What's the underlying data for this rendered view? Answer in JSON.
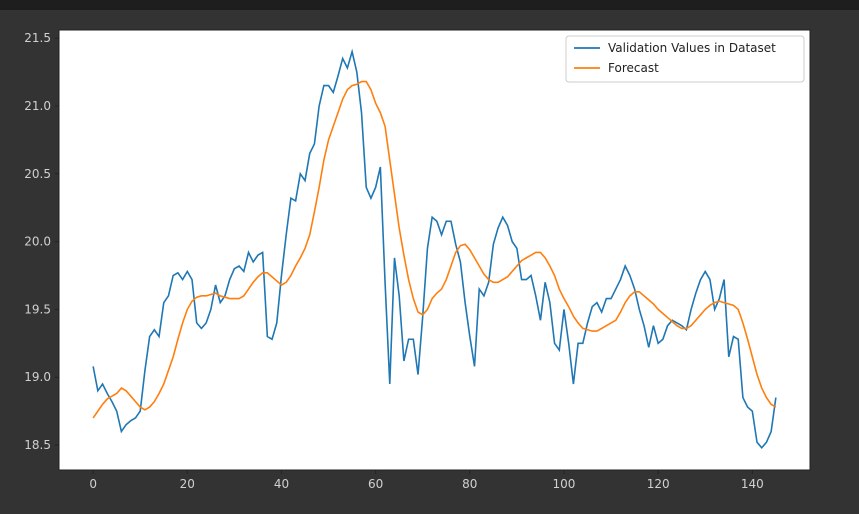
{
  "chart_data": {
    "type": "line",
    "x": [
      0,
      1,
      2,
      3,
      4,
      5,
      6,
      7,
      8,
      9,
      10,
      11,
      12,
      13,
      14,
      15,
      16,
      17,
      18,
      19,
      20,
      21,
      22,
      23,
      24,
      25,
      26,
      27,
      28,
      29,
      30,
      31,
      32,
      33,
      34,
      35,
      36,
      37,
      38,
      39,
      40,
      41,
      42,
      43,
      44,
      45,
      46,
      47,
      48,
      49,
      50,
      51,
      52,
      53,
      54,
      55,
      56,
      57,
      58,
      59,
      60,
      61,
      62,
      63,
      64,
      65,
      66,
      67,
      68,
      69,
      70,
      71,
      72,
      73,
      74,
      75,
      76,
      77,
      78,
      79,
      80,
      81,
      82,
      83,
      84,
      85,
      86,
      87,
      88,
      89,
      90,
      91,
      92,
      93,
      94,
      95,
      96,
      97,
      98,
      99,
      100,
      101,
      102,
      103,
      104,
      105,
      106,
      107,
      108,
      109,
      110,
      111,
      112,
      113,
      114,
      115,
      116,
      117,
      118,
      119,
      120,
      121,
      122,
      123,
      124,
      125,
      126,
      127,
      128,
      129,
      130,
      131,
      132,
      133,
      134,
      135,
      136,
      137,
      138,
      139,
      140,
      141,
      142,
      143,
      144,
      145
    ],
    "series": [
      {
        "name": "Validation Values in Dataset",
        "color": "#1f77b4",
        "values": [
          19.08,
          18.9,
          18.95,
          18.88,
          18.82,
          18.75,
          18.6,
          18.65,
          18.68,
          18.7,
          18.75,
          19.05,
          19.3,
          19.35,
          19.3,
          19.55,
          19.6,
          19.75,
          19.77,
          19.72,
          19.78,
          19.72,
          19.4,
          19.36,
          19.4,
          19.5,
          19.68,
          19.55,
          19.6,
          19.72,
          19.8,
          19.82,
          19.78,
          19.92,
          19.85,
          19.9,
          19.92,
          19.3,
          19.28,
          19.4,
          19.75,
          20.05,
          20.32,
          20.3,
          20.5,
          20.45,
          20.65,
          20.72,
          21.0,
          21.15,
          21.15,
          21.1,
          21.22,
          21.35,
          21.28,
          21.4,
          21.25,
          20.95,
          20.4,
          20.32,
          20.4,
          20.55,
          19.7,
          18.95,
          19.88,
          19.6,
          19.12,
          19.28,
          19.28,
          19.02,
          19.45,
          19.95,
          20.18,
          20.15,
          20.05,
          20.15,
          20.15,
          19.98,
          19.85,
          19.55,
          19.3,
          19.08,
          19.65,
          19.6,
          19.7,
          19.98,
          20.1,
          20.18,
          20.12,
          20.0,
          19.95,
          19.72,
          19.72,
          19.75,
          19.6,
          19.42,
          19.7,
          19.55,
          19.25,
          19.2,
          19.5,
          19.25,
          18.95,
          19.25,
          19.25,
          19.4,
          19.52,
          19.55,
          19.48,
          19.58,
          19.58,
          19.65,
          19.72,
          19.82,
          19.75,
          19.65,
          19.5,
          19.38,
          19.22,
          19.38,
          19.25,
          19.28,
          19.38,
          19.42,
          19.4,
          19.38,
          19.35,
          19.5,
          19.62,
          19.72,
          19.78,
          19.72,
          19.5,
          19.58,
          19.72,
          19.15,
          19.3,
          19.28,
          18.85,
          18.78,
          18.75,
          18.52,
          18.48,
          18.52,
          18.6,
          18.85
        ]
      },
      {
        "name": "Forecast",
        "color": "#ff7f0e",
        "values": [
          18.7,
          18.75,
          18.8,
          18.84,
          18.86,
          18.88,
          18.92,
          18.9,
          18.86,
          18.82,
          18.78,
          18.76,
          18.78,
          18.82,
          18.88,
          18.95,
          19.05,
          19.15,
          19.28,
          19.4,
          19.5,
          19.56,
          19.59,
          19.6,
          19.6,
          19.61,
          19.62,
          19.6,
          19.59,
          19.58,
          19.58,
          19.58,
          19.6,
          19.65,
          19.7,
          19.74,
          19.77,
          19.77,
          19.74,
          19.71,
          19.68,
          19.7,
          19.75,
          19.82,
          19.88,
          19.95,
          20.05,
          20.22,
          20.4,
          20.6,
          20.75,
          20.85,
          20.95,
          21.05,
          21.12,
          21.15,
          21.16,
          21.18,
          21.18,
          21.12,
          21.02,
          20.95,
          20.85,
          20.6,
          20.35,
          20.1,
          19.9,
          19.72,
          19.58,
          19.48,
          19.46,
          19.5,
          19.58,
          19.62,
          19.65,
          19.72,
          19.82,
          19.92,
          19.97,
          19.98,
          19.94,
          19.88,
          19.82,
          19.76,
          19.72,
          19.7,
          19.7,
          19.72,
          19.74,
          19.78,
          19.82,
          19.86,
          19.88,
          19.9,
          19.92,
          19.92,
          19.88,
          19.82,
          19.75,
          19.65,
          19.58,
          19.52,
          19.45,
          19.4,
          19.36,
          19.35,
          19.34,
          19.34,
          19.36,
          19.38,
          19.4,
          19.42,
          19.48,
          19.55,
          19.6,
          19.63,
          19.63,
          19.6,
          19.57,
          19.54,
          19.5,
          19.47,
          19.44,
          19.41,
          19.38,
          19.36,
          19.36,
          19.38,
          19.42,
          19.46,
          19.5,
          19.53,
          19.55,
          19.56,
          19.55,
          19.54,
          19.53,
          19.5,
          19.4,
          19.28,
          19.15,
          19.02,
          18.92,
          18.85,
          18.8,
          18.78
        ]
      }
    ],
    "xlim": [
      -7.25,
      152.25
    ],
    "xticks": [
      0,
      20,
      40,
      60,
      80,
      100,
      120,
      140
    ],
    "ylim": [
      18.316,
      21.56
    ],
    "yticks": [
      18.5,
      {
        "value": 19,
        "label": "19.0"
      },
      19.5,
      {
        "value": 20,
        "label": "20.0"
      },
      20.5,
      {
        "value": 21,
        "label": "21.0"
      },
      21.5
    ],
    "legend": "upper right"
  }
}
